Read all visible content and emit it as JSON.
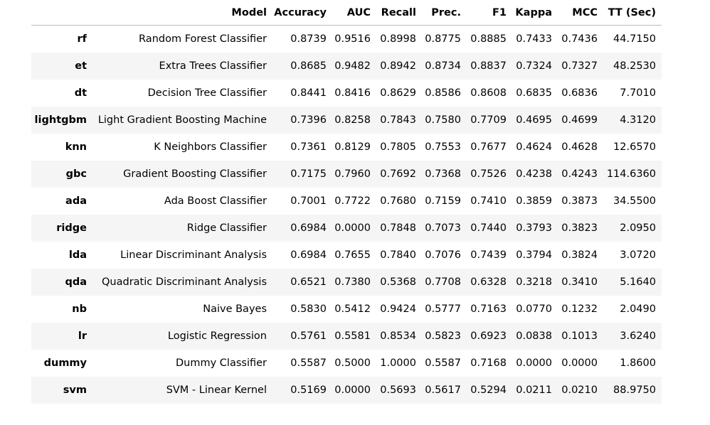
{
  "table": {
    "columns": [
      "",
      "Model",
      "Accuracy",
      "AUC",
      "Recall",
      "Prec.",
      "F1",
      "Kappa",
      "MCC",
      "TT (Sec)"
    ],
    "rows": [
      {
        "id": "rf",
        "model": "Random Forest Classifier",
        "accuracy": "0.8739",
        "auc": "0.9516",
        "recall": "0.8998",
        "prec": "0.8775",
        "f1": "0.8885",
        "kappa": "0.7433",
        "mcc": "0.7436",
        "tt": "44.7150"
      },
      {
        "id": "et",
        "model": "Extra Trees Classifier",
        "accuracy": "0.8685",
        "auc": "0.9482",
        "recall": "0.8942",
        "prec": "0.8734",
        "f1": "0.8837",
        "kappa": "0.7324",
        "mcc": "0.7327",
        "tt": "48.2530"
      },
      {
        "id": "dt",
        "model": "Decision Tree Classifier",
        "accuracy": "0.8441",
        "auc": "0.8416",
        "recall": "0.8629",
        "prec": "0.8586",
        "f1": "0.8608",
        "kappa": "0.6835",
        "mcc": "0.6836",
        "tt": "7.7010"
      },
      {
        "id": "lightgbm",
        "model": "Light Gradient Boosting Machine",
        "accuracy": "0.7396",
        "auc": "0.8258",
        "recall": "0.7843",
        "prec": "0.7580",
        "f1": "0.7709",
        "kappa": "0.4695",
        "mcc": "0.4699",
        "tt": "4.3120"
      },
      {
        "id": "knn",
        "model": "K Neighbors Classifier",
        "accuracy": "0.7361",
        "auc": "0.8129",
        "recall": "0.7805",
        "prec": "0.7553",
        "f1": "0.7677",
        "kappa": "0.4624",
        "mcc": "0.4628",
        "tt": "12.6570"
      },
      {
        "id": "gbc",
        "model": "Gradient Boosting Classifier",
        "accuracy": "0.7175",
        "auc": "0.7960",
        "recall": "0.7692",
        "prec": "0.7368",
        "f1": "0.7526",
        "kappa": "0.4238",
        "mcc": "0.4243",
        "tt": "114.6360"
      },
      {
        "id": "ada",
        "model": "Ada Boost Classifier",
        "accuracy": "0.7001",
        "auc": "0.7722",
        "recall": "0.7680",
        "prec": "0.7159",
        "f1": "0.7410",
        "kappa": "0.3859",
        "mcc": "0.3873",
        "tt": "34.5500"
      },
      {
        "id": "ridge",
        "model": "Ridge Classifier",
        "accuracy": "0.6984",
        "auc": "0.0000",
        "recall": "0.7848",
        "prec": "0.7073",
        "f1": "0.7440",
        "kappa": "0.3793",
        "mcc": "0.3823",
        "tt": "2.0950"
      },
      {
        "id": "lda",
        "model": "Linear Discriminant Analysis",
        "accuracy": "0.6984",
        "auc": "0.7655",
        "recall": "0.7840",
        "prec": "0.7076",
        "f1": "0.7439",
        "kappa": "0.3794",
        "mcc": "0.3824",
        "tt": "3.0720"
      },
      {
        "id": "qda",
        "model": "Quadratic Discriminant Analysis",
        "accuracy": "0.6521",
        "auc": "0.7380",
        "recall": "0.5368",
        "prec": "0.7708",
        "f1": "0.6328",
        "kappa": "0.3218",
        "mcc": "0.3410",
        "tt": "5.1640"
      },
      {
        "id": "nb",
        "model": "Naive Bayes",
        "accuracy": "0.5830",
        "auc": "0.5412",
        "recall": "0.9424",
        "prec": "0.5777",
        "f1": "0.7163",
        "kappa": "0.0770",
        "mcc": "0.1232",
        "tt": "2.0490"
      },
      {
        "id": "lr",
        "model": "Logistic Regression",
        "accuracy": "0.5761",
        "auc": "0.5581",
        "recall": "0.8534",
        "prec": "0.5823",
        "f1": "0.6923",
        "kappa": "0.0838",
        "mcc": "0.1013",
        "tt": "3.6240"
      },
      {
        "id": "dummy",
        "model": "Dummy Classifier",
        "accuracy": "0.5587",
        "auc": "0.5000",
        "recall": "1.0000",
        "prec": "0.5587",
        "f1": "0.7168",
        "kappa": "0.0000",
        "mcc": "0.0000",
        "tt": "1.8600"
      },
      {
        "id": "svm",
        "model": "SVM - Linear Kernel",
        "accuracy": "0.5169",
        "auc": "0.0000",
        "recall": "0.5693",
        "prec": "0.5617",
        "f1": "0.5294",
        "kappa": "0.0211",
        "mcc": "0.0210",
        "tt": "88.9750"
      }
    ]
  }
}
